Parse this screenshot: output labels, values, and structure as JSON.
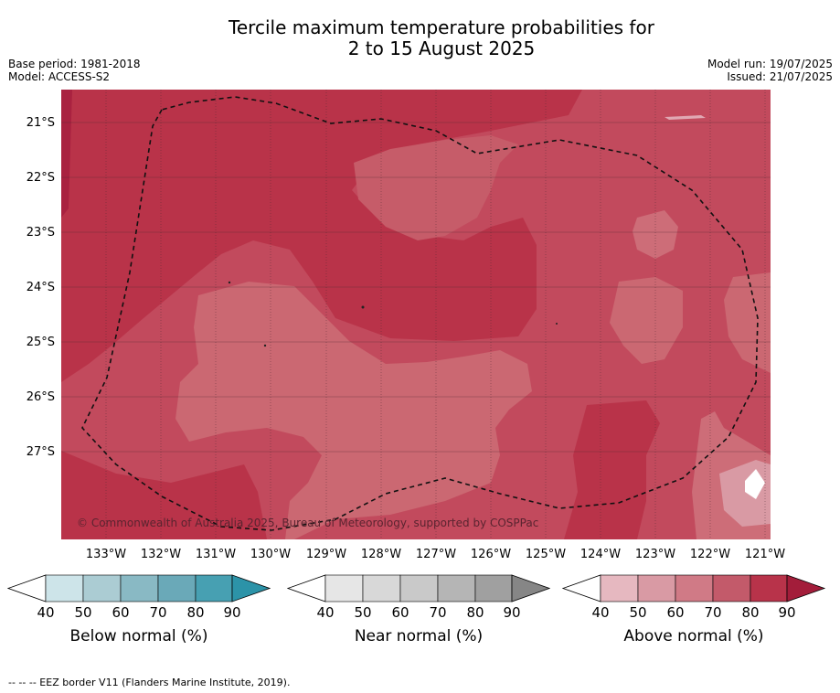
{
  "title_line1": "Tercile maximum temperature probabilities for",
  "title_line2": "2 to 15 August 2025",
  "base_period": "Base period: 1981-2018",
  "model": "Model: ACCESS-S2",
  "model_run": "Model run: 19/07/2025",
  "issued": "Issued: 21/07/2025",
  "copyright": "© Commonwealth of Australia 2025, Bureau of Meteorology, supported by COSPPac",
  "footnote": "--  --  -- EEZ border V11 (Flanders Marine Institute, 2019).",
  "lat_labels": [
    "21°S",
    "22°S",
    "23°S",
    "24°S",
    "25°S",
    "26°S",
    "27°S"
  ],
  "lon_labels": [
    "133°W",
    "132°W",
    "131°W",
    "130°W",
    "129°W",
    "128°W",
    "127°W",
    "126°W",
    "125°W",
    "124°W",
    "123°W",
    "122°W",
    "121°W"
  ],
  "colorbars": [
    {
      "title": "Below normal (%)",
      "ticks": [
        "40",
        "50",
        "60",
        "70",
        "80",
        "90"
      ],
      "colors": [
        "#ffffff",
        "#cde4e9",
        "#abccd3",
        "#89b9c4",
        "#6aa9b8",
        "#47a0b2",
        "#2c93a8"
      ]
    },
    {
      "title": "Near normal (%)",
      "ticks": [
        "40",
        "50",
        "60",
        "70",
        "80",
        "90"
      ],
      "colors": [
        "#ffffff",
        "#e6e6e6",
        "#d8d8d8",
        "#c9c9c9",
        "#b5b5b5",
        "#a0a0a0",
        "#868686"
      ]
    },
    {
      "title": "Above normal (%)",
      "ticks": [
        "40",
        "50",
        "60",
        "70",
        "80",
        "90"
      ],
      "colors": [
        "#ffffff",
        "#e6b8c0",
        "#d99aa4",
        "#d07a86",
        "#c35a6a",
        "#b8334a",
        "#a31d3a"
      ]
    }
  ]
}
